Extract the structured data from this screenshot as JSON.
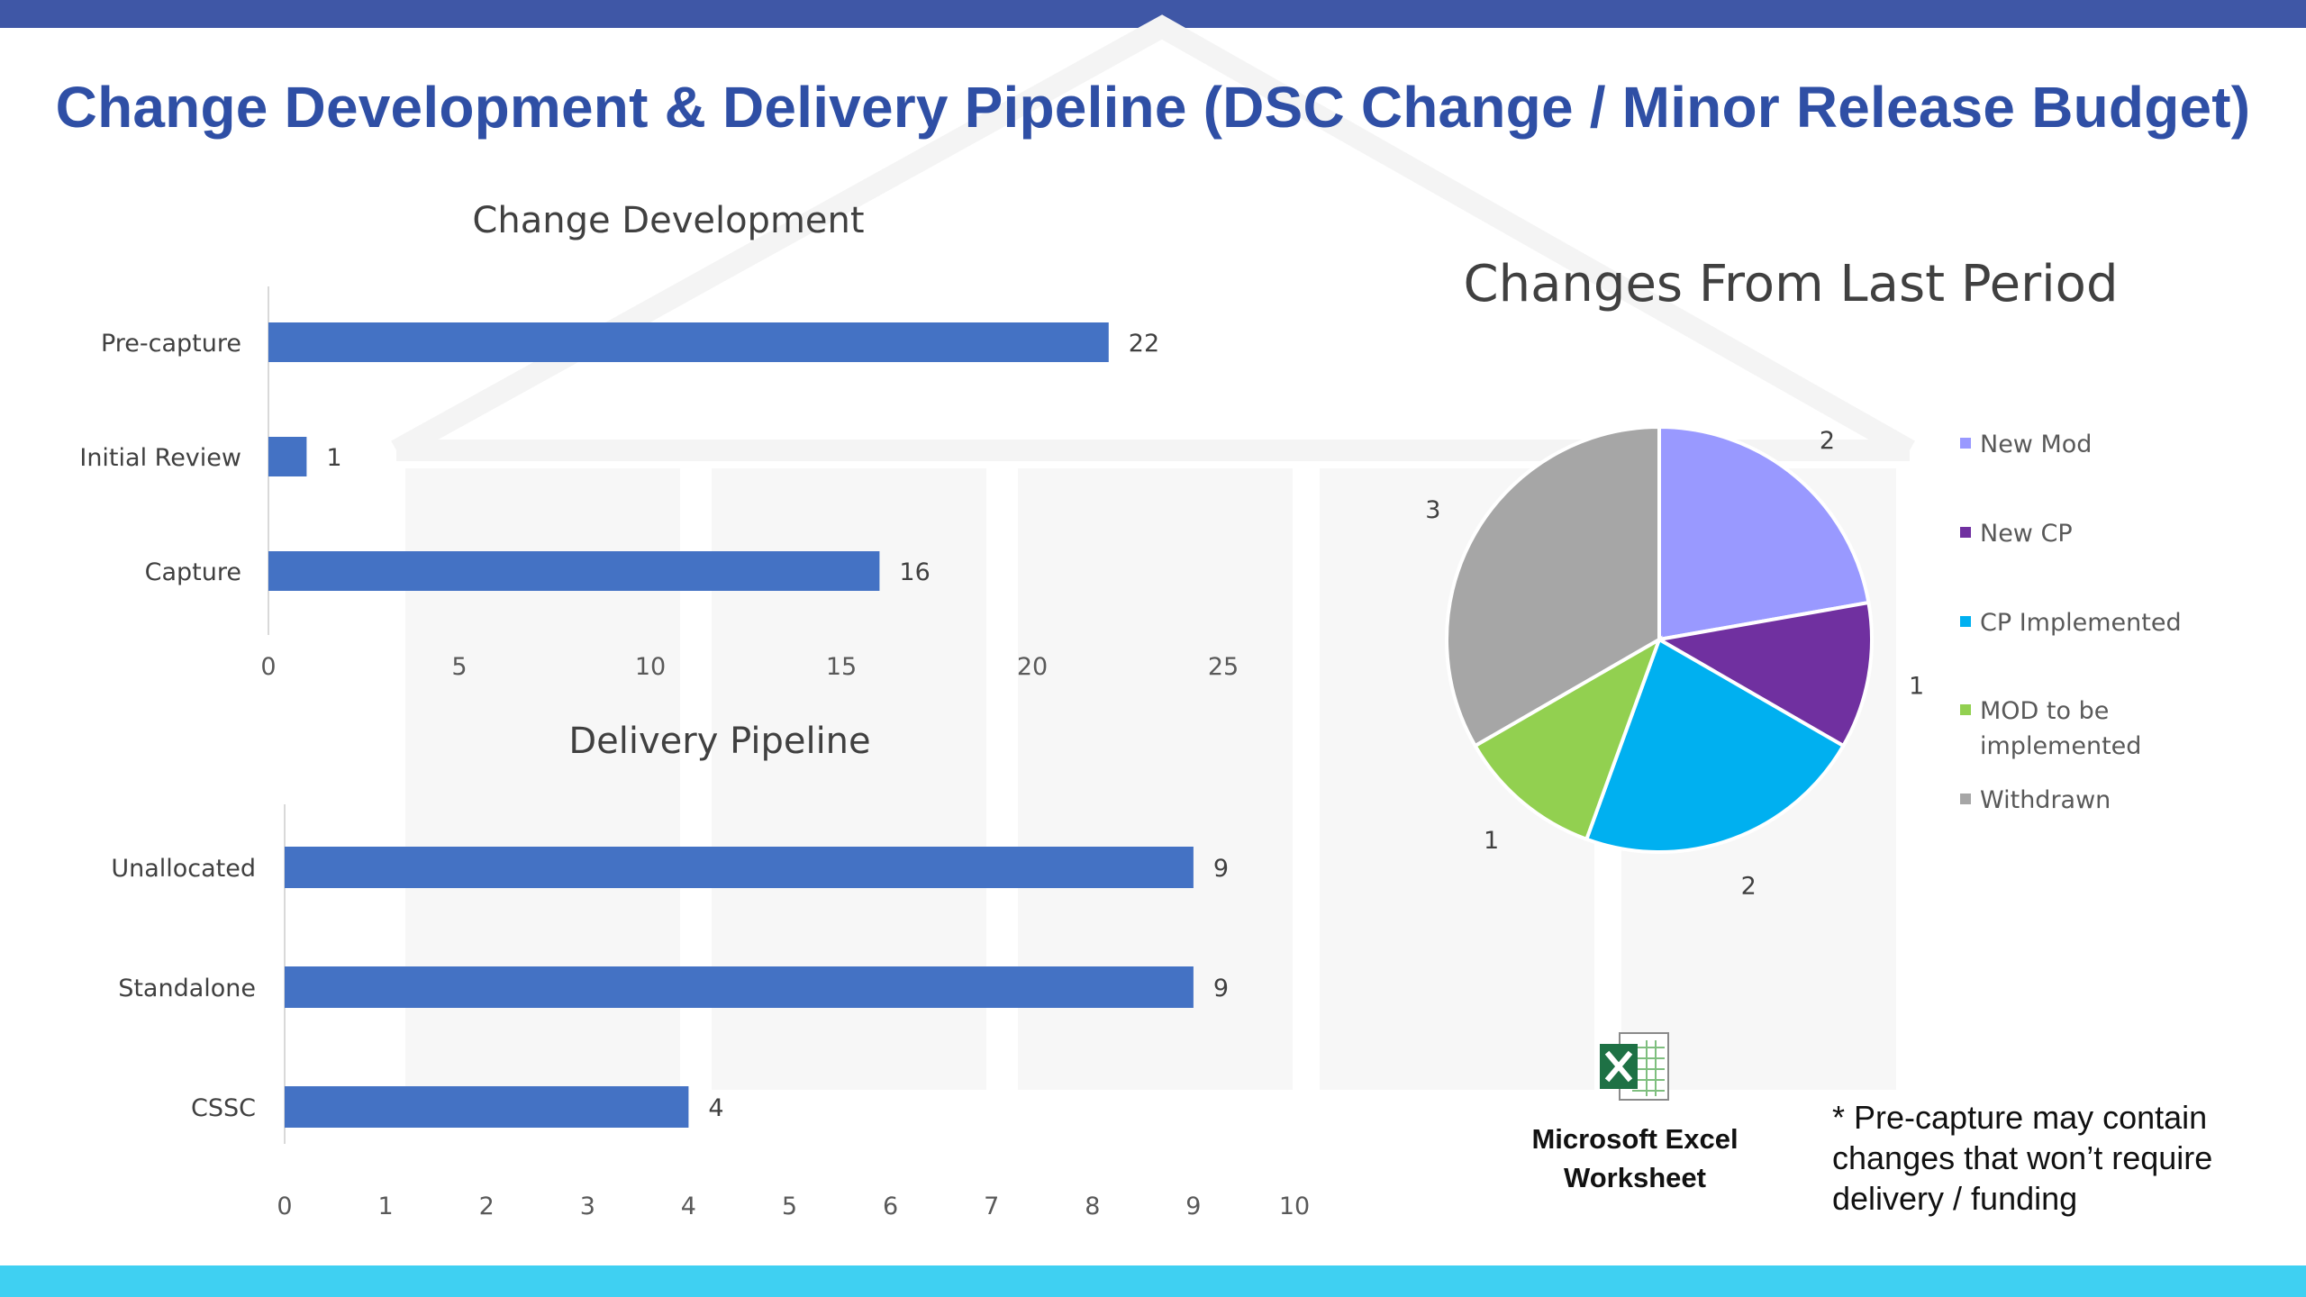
{
  "slide": {
    "title": "Change Development & Delivery Pipeline (DSC Change / Minor Release Budget)",
    "footnote": "* Pre-capture may contain changes that won’t require delivery / funding",
    "excel_label_line1": "Microsoft Excel",
    "excel_label_line2": "Worksheet",
    "colors": {
      "top_bar": "#3f57a6",
      "bottom_bar": "#3fd0f2",
      "title": "#2f4fa5",
      "bar": "#4472c4"
    }
  },
  "chart_data": [
    {
      "type": "bar",
      "orientation": "horizontal",
      "title": "Change Development",
      "categories": [
        "Pre-capture",
        "Initial Review",
        "Capture"
      ],
      "values": [
        22,
        1,
        16
      ],
      "xlim": [
        0,
        25
      ],
      "ticks": [
        0,
        5,
        10,
        15,
        20,
        25
      ],
      "data_labels": true,
      "grid": false,
      "color": "#4472c4"
    },
    {
      "type": "bar",
      "orientation": "horizontal",
      "title": "Delivery Pipeline",
      "categories": [
        "Unallocated",
        "Standalone",
        "CSSC"
      ],
      "values": [
        9,
        9,
        4
      ],
      "xlim": [
        0,
        10
      ],
      "ticks": [
        0,
        1,
        2,
        3,
        4,
        5,
        6,
        7,
        8,
        9,
        10
      ],
      "data_labels": true,
      "grid": false,
      "color": "#4472c4"
    },
    {
      "type": "pie",
      "title": "Changes From Last Period",
      "slices": [
        {
          "label": "New Mod",
          "value": 2,
          "color": "#9999ff"
        },
        {
          "label": "New CP",
          "value": 1,
          "color": "#7030a0"
        },
        {
          "label": "CP Implemented",
          "value": 2,
          "color": "#00b0f0"
        },
        {
          "label": "MOD to be implemented",
          "value": 1,
          "color": "#92d050"
        },
        {
          "label": "Withdrawn",
          "value": 3,
          "color": "#a6a6a6"
        }
      ],
      "legend": "right",
      "data_labels": true
    }
  ]
}
